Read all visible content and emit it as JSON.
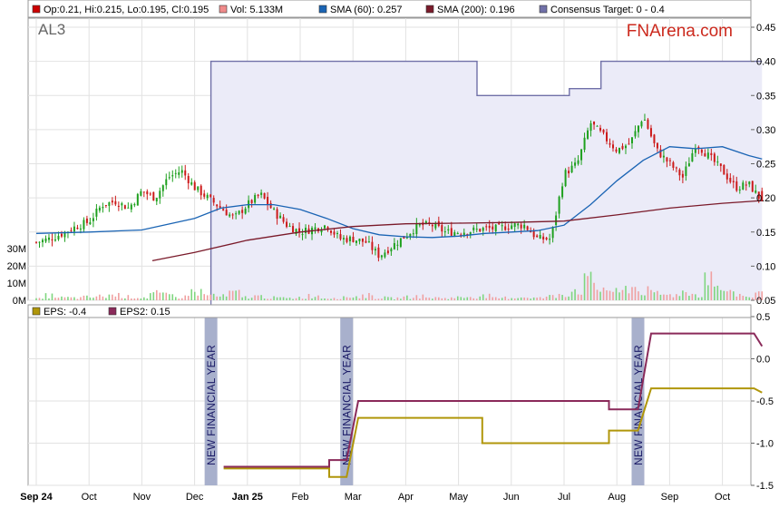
{
  "header": {
    "ticker": "AL3",
    "brand": "FNArena.com"
  },
  "legend_main": [
    {
      "label": "Op:0.21, Hi:0.215, Lo:0.195, Cl:0.195",
      "color": "#cc0000"
    },
    {
      "label": "Vol: 5.133M",
      "color": "#f08a8a"
    },
    {
      "label": "SMA (60): 0.257",
      "color": "#1a64b4"
    },
    {
      "label": "SMA (200): 0.196",
      "color": "#7a1a2a"
    },
    {
      "label": "Consensus Target: 0 - 0.4",
      "color": "#7070a8"
    }
  ],
  "legend_eps": [
    {
      "label": "EPS: -0.4",
      "color": "#b0960a"
    },
    {
      "label": "EPS2: 0.15",
      "color": "#8a2a5a"
    }
  ],
  "colors": {
    "up_candle": "#1ea01e",
    "down_candle": "#cc1a1a",
    "sma60": "#1a64b4",
    "sma200": "#7a1a2a",
    "target": "#7070a8",
    "target_fill": "#ebebf8",
    "eps": "#b0960a",
    "eps2": "#8a2a5a",
    "nfy_band": "#a8b0cc"
  },
  "chart_data": [
    {
      "type": "candlestick",
      "x_tick_labels": [
        "Sep 24",
        "Oct",
        "Nov",
        "Dec",
        "Jan 25",
        "Feb",
        "Mar",
        "Apr",
        "May",
        "Jun",
        "Jul",
        "Aug",
        "Sep",
        "Oct"
      ],
      "y_tick_labels": [
        "0.45",
        "0.40",
        "0.35",
        "0.30",
        "0.25",
        "0.20",
        "0.15",
        "0.10",
        "0.05"
      ],
      "ylim": [
        0.05,
        0.45
      ],
      "volume_tick_labels": [
        "30M",
        "20M",
        "10M",
        "0M"
      ],
      "volume_ylim": [
        0,
        30
      ],
      "last_bar": {
        "open": 0.21,
        "high": 0.215,
        "low": 0.195,
        "close": 0.195,
        "volume_m": 5.133
      },
      "close_path_x": [
        0,
        0.25,
        0.5,
        0.75,
        1,
        1.25,
        1.5,
        1.75,
        2,
        2.25,
        2.5,
        2.75,
        3,
        3.25,
        3.5,
        3.75,
        4,
        4.25,
        4.5,
        4.75,
        5,
        5.25,
        5.5,
        5.75,
        6,
        6.25,
        6.5,
        6.75,
        7,
        7.25,
        7.5,
        7.75,
        8,
        8.25,
        8.5,
        8.75,
        9,
        9.25,
        9.5,
        9.75,
        10,
        10.25,
        10.5,
        10.75,
        11,
        11.25,
        11.5,
        11.75,
        12,
        12.25,
        12.5,
        12.75,
        13,
        13.25,
        13.5,
        13.75
      ],
      "close_path_y": [
        0.135,
        0.14,
        0.148,
        0.158,
        0.165,
        0.19,
        0.195,
        0.185,
        0.21,
        0.2,
        0.23,
        0.24,
        0.215,
        0.2,
        0.185,
        0.17,
        0.19,
        0.205,
        0.18,
        0.16,
        0.15,
        0.155,
        0.16,
        0.14,
        0.14,
        0.135,
        0.115,
        0.13,
        0.145,
        0.16,
        0.16,
        0.15,
        0.15,
        0.152,
        0.155,
        0.155,
        0.16,
        0.16,
        0.14,
        0.14,
        0.235,
        0.25,
        0.31,
        0.29,
        0.27,
        0.28,
        0.32,
        0.27,
        0.25,
        0.23,
        0.28,
        0.26,
        0.24,
        0.215,
        0.22,
        0.195
      ],
      "volume_bars_m": [
        1.2,
        3.5,
        2.0,
        1.8,
        2.4,
        3.0,
        4.0,
        2.6,
        2.2,
        5.0,
        3.8,
        2.6,
        6.5,
        4.0,
        3.0,
        5.5,
        2.4,
        3.0,
        2.0,
        1.6,
        2.2,
        3.4,
        1.8,
        2.0,
        2.8,
        3.6,
        2.0,
        1.6,
        2.4,
        3.0,
        2.0,
        1.8,
        2.2,
        2.8,
        3.2,
        1.6,
        2.0,
        2.4,
        1.8,
        3.0,
        5.0,
        8.0,
        14.0,
        9.0,
        6.0,
        10.0,
        7.0,
        5.0,
        4.0,
        6.0,
        4.5,
        19.0,
        8.0,
        5.0,
        3.0,
        5.133
      ],
      "sma60": {
        "x": [
          0,
          1,
          2,
          3,
          3.5,
          4,
          4.5,
          5,
          5.5,
          6,
          6.5,
          7,
          7.5,
          8,
          8.5,
          9,
          9.5,
          10,
          10.5,
          11,
          11.5,
          12,
          12.5,
          13,
          13.5,
          13.75
        ],
        "y": [
          0.148,
          0.15,
          0.153,
          0.17,
          0.185,
          0.19,
          0.19,
          0.183,
          0.17,
          0.155,
          0.146,
          0.143,
          0.142,
          0.144,
          0.148,
          0.15,
          0.152,
          0.16,
          0.19,
          0.225,
          0.255,
          0.275,
          0.272,
          0.275,
          0.262,
          0.257
        ]
      },
      "sma200": {
        "x": [
          2.2,
          3,
          4,
          5,
          6,
          7,
          8,
          9,
          10,
          11,
          12,
          13,
          13.75
        ],
        "y": [
          0.108,
          0.12,
          0.138,
          0.15,
          0.158,
          0.162,
          0.163,
          0.164,
          0.166,
          0.175,
          0.185,
          0.192,
          0.196
        ]
      },
      "consensus_target": {
        "x": [
          3.31,
          3.31,
          8.35,
          8.35,
          10.1,
          10.1,
          10.7,
          10.7,
          13.75
        ],
        "y": [
          0.05,
          0.4,
          0.4,
          0.35,
          0.35,
          0.36,
          0.36,
          0.4,
          0.4
        ]
      }
    },
    {
      "type": "line",
      "y_tick_labels": [
        "0.5",
        "0.0",
        "-0.5",
        "-1.0",
        "-1.5"
      ],
      "ylim": [
        -1.5,
        0.5
      ],
      "annotations": [
        {
          "text": "NEW FINANCIAL YEAR",
          "x": 3.31
        },
        {
          "text": "NEW FINANCIAL YEAR",
          "x": 5.88
        },
        {
          "text": "NEW FINANCIAL YEAR",
          "x": 11.4
        }
      ],
      "series": [
        {
          "name": "EPS",
          "x": [
            3.55,
            5.55,
            5.55,
            5.88,
            6.1,
            8.45,
            8.45,
            10.85,
            10.85,
            11.4,
            11.65,
            13.6,
            13.75
          ],
          "y": [
            -1.3,
            -1.3,
            -1.4,
            -1.4,
            -0.7,
            -0.7,
            -1.0,
            -1.0,
            -0.85,
            -0.85,
            -0.35,
            -0.35,
            -0.4
          ]
        },
        {
          "name": "EPS2",
          "x": [
            3.55,
            5.55,
            5.55,
            5.88,
            6.1,
            10.85,
            10.85,
            11.4,
            11.65,
            13.6,
            13.75
          ],
          "y": [
            -1.28,
            -1.28,
            -1.2,
            -1.2,
            -0.5,
            -0.5,
            -0.6,
            -0.6,
            0.3,
            0.3,
            0.15
          ]
        }
      ]
    }
  ]
}
